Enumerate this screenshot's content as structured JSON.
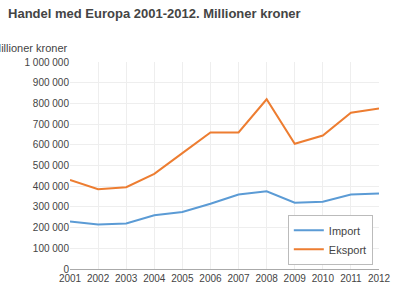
{
  "chart_data": {
    "type": "line",
    "title": "Handel med Europa 2001-2012. Millioner kroner",
    "ylabel": "Millioner kroner",
    "x": [
      2001,
      2002,
      2003,
      2004,
      2005,
      2006,
      2007,
      2008,
      2009,
      2010,
      2011,
      2012
    ],
    "series": [
      {
        "name": "Import",
        "color": "#5b9bd5",
        "values": [
          230000,
          215000,
          220000,
          260000,
          275000,
          315000,
          360000,
          375000,
          320000,
          325000,
          360000,
          365000
        ]
      },
      {
        "name": "Eksport",
        "color": "#ed7d31",
        "values": [
          430000,
          385000,
          395000,
          460000,
          560000,
          660000,
          660000,
          820000,
          605000,
          645000,
          755000,
          775000
        ]
      }
    ],
    "xlim": [
      2001,
      2012
    ],
    "xticks": [
      2001,
      2002,
      2003,
      2004,
      2005,
      2006,
      2007,
      2008,
      2009,
      2010,
      2011,
      2012
    ],
    "ylim": [
      0,
      1000000
    ],
    "yticks": [
      0,
      {
        "value": 100000,
        "label": "100 000"
      },
      {
        "value": 200000,
        "label": "200 000"
      },
      {
        "value": 300000,
        "label": "300 000"
      },
      {
        "value": 400000,
        "label": "400 000"
      },
      {
        "value": 500000,
        "label": "500 000"
      },
      {
        "value": 600000,
        "label": "600 000"
      },
      {
        "value": 700000,
        "label": "700 000"
      },
      {
        "value": 800000,
        "label": "800 000"
      },
      {
        "value": 900000,
        "label": "900 000"
      },
      {
        "value": 1000000,
        "label": "1 000 000"
      }
    ],
    "grid": true,
    "legend": "lower right"
  }
}
